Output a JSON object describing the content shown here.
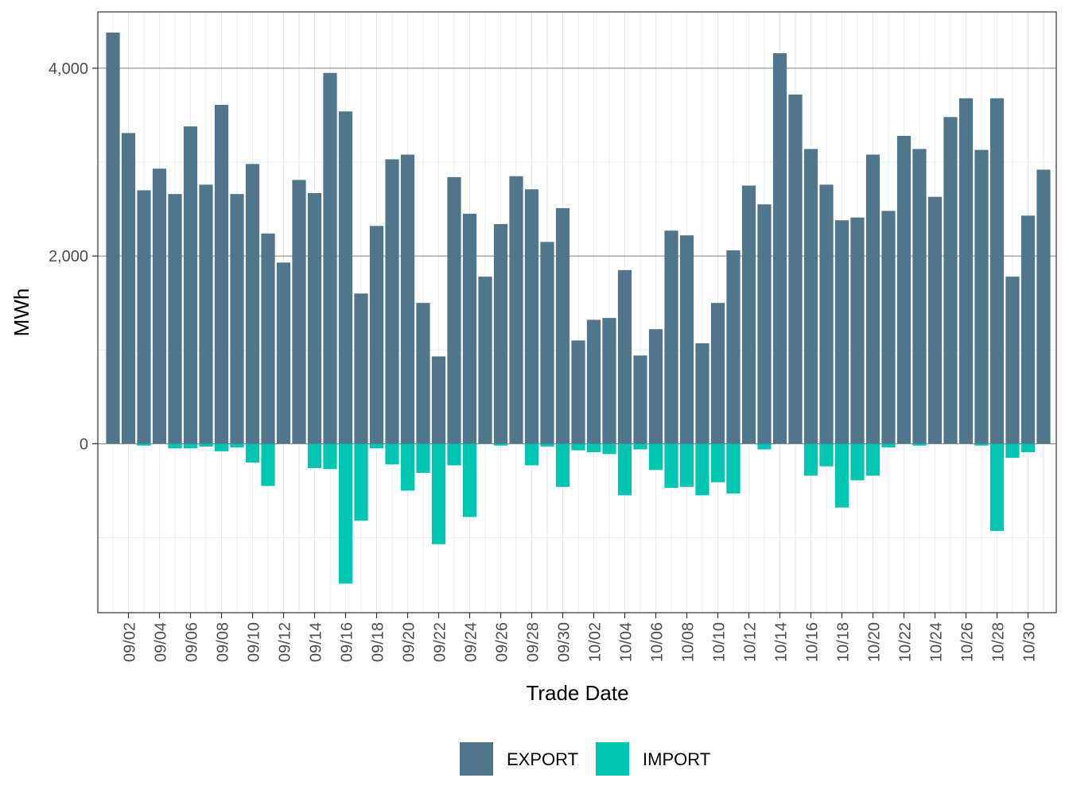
{
  "chart_data": {
    "type": "bar",
    "stacked": true,
    "title": "",
    "xlabel": "Trade Date",
    "ylabel": "MWh",
    "ylim": [
      -1800,
      4600
    ],
    "y_ticks": [
      0,
      2000,
      4000
    ],
    "y_tick_labels": [
      "0",
      "2,000",
      "4,000"
    ],
    "grid": true,
    "legend_position": "bottom",
    "categories": [
      "09/01",
      "09/02",
      "09/03",
      "09/04",
      "09/05",
      "09/06",
      "09/07",
      "09/08",
      "09/09",
      "09/10",
      "09/11",
      "09/12",
      "09/13",
      "09/14",
      "09/15",
      "09/16",
      "09/17",
      "09/18",
      "09/19",
      "09/20",
      "09/21",
      "09/22",
      "09/23",
      "09/24",
      "09/25",
      "09/26",
      "09/27",
      "09/28",
      "09/29",
      "09/30",
      "10/01",
      "10/02",
      "10/03",
      "10/04",
      "10/05",
      "10/06",
      "10/07",
      "10/08",
      "10/09",
      "10/10",
      "10/11",
      "10/12",
      "10/13",
      "10/14",
      "10/15",
      "10/16",
      "10/17",
      "10/18",
      "10/19",
      "10/20",
      "10/21",
      "10/22",
      "10/23",
      "10/24",
      "10/25",
      "10/26",
      "10/27",
      "10/28",
      "10/29",
      "10/30",
      "10/31"
    ],
    "x_tick_labels": [
      "09/02",
      "09/04",
      "09/06",
      "09/08",
      "09/10",
      "09/12",
      "09/14",
      "09/16",
      "09/18",
      "09/20",
      "09/22",
      "09/24",
      "09/26",
      "09/28",
      "09/30",
      "10/02",
      "10/04",
      "10/06",
      "10/08",
      "10/10",
      "10/12",
      "10/14",
      "10/16",
      "10/18",
      "10/20",
      "10/22",
      "10/24",
      "10/26",
      "10/28",
      "10/30"
    ],
    "series": [
      {
        "name": "EXPORT",
        "color": "#51758b",
        "values": [
          4380,
          3310,
          2700,
          2930,
          2660,
          3380,
          2760,
          3610,
          2660,
          2980,
          2240,
          1930,
          2810,
          2670,
          3950,
          3540,
          1600,
          2320,
          3030,
          3080,
          1500,
          930,
          2840,
          2450,
          1780,
          2340,
          2850,
          2710,
          2150,
          2510,
          1100,
          1320,
          1340,
          1850,
          940,
          1220,
          2270,
          2220,
          1070,
          1500,
          2060,
          2750,
          2550,
          4160,
          3720,
          3140,
          2760,
          2380,
          2410,
          3080,
          2480,
          3280,
          3140,
          2630,
          3480,
          3680,
          3130,
          3680,
          1780,
          2430,
          2920
        ]
      },
      {
        "name": "IMPORT",
        "color": "#00c5b0",
        "values": [
          0,
          0,
          -20,
          0,
          -50,
          -50,
          -30,
          -80,
          -40,
          -200,
          -450,
          0,
          0,
          -260,
          -270,
          -1490,
          -820,
          -50,
          -220,
          -500,
          -310,
          -1070,
          -230,
          -780,
          0,
          -20,
          0,
          -230,
          -30,
          -460,
          -70,
          -90,
          -110,
          -550,
          -60,
          -280,
          -470,
          -460,
          -550,
          -410,
          -530,
          0,
          -60,
          0,
          0,
          -340,
          -240,
          -680,
          -390,
          -340,
          -40,
          0,
          -20,
          0,
          0,
          0,
          -20,
          -930,
          -150,
          -90,
          0
        ]
      }
    ]
  },
  "legend": {
    "items": [
      {
        "label": "EXPORT",
        "color": "#51758b"
      },
      {
        "label": "IMPORT",
        "color": "#00c5b0"
      }
    ]
  }
}
